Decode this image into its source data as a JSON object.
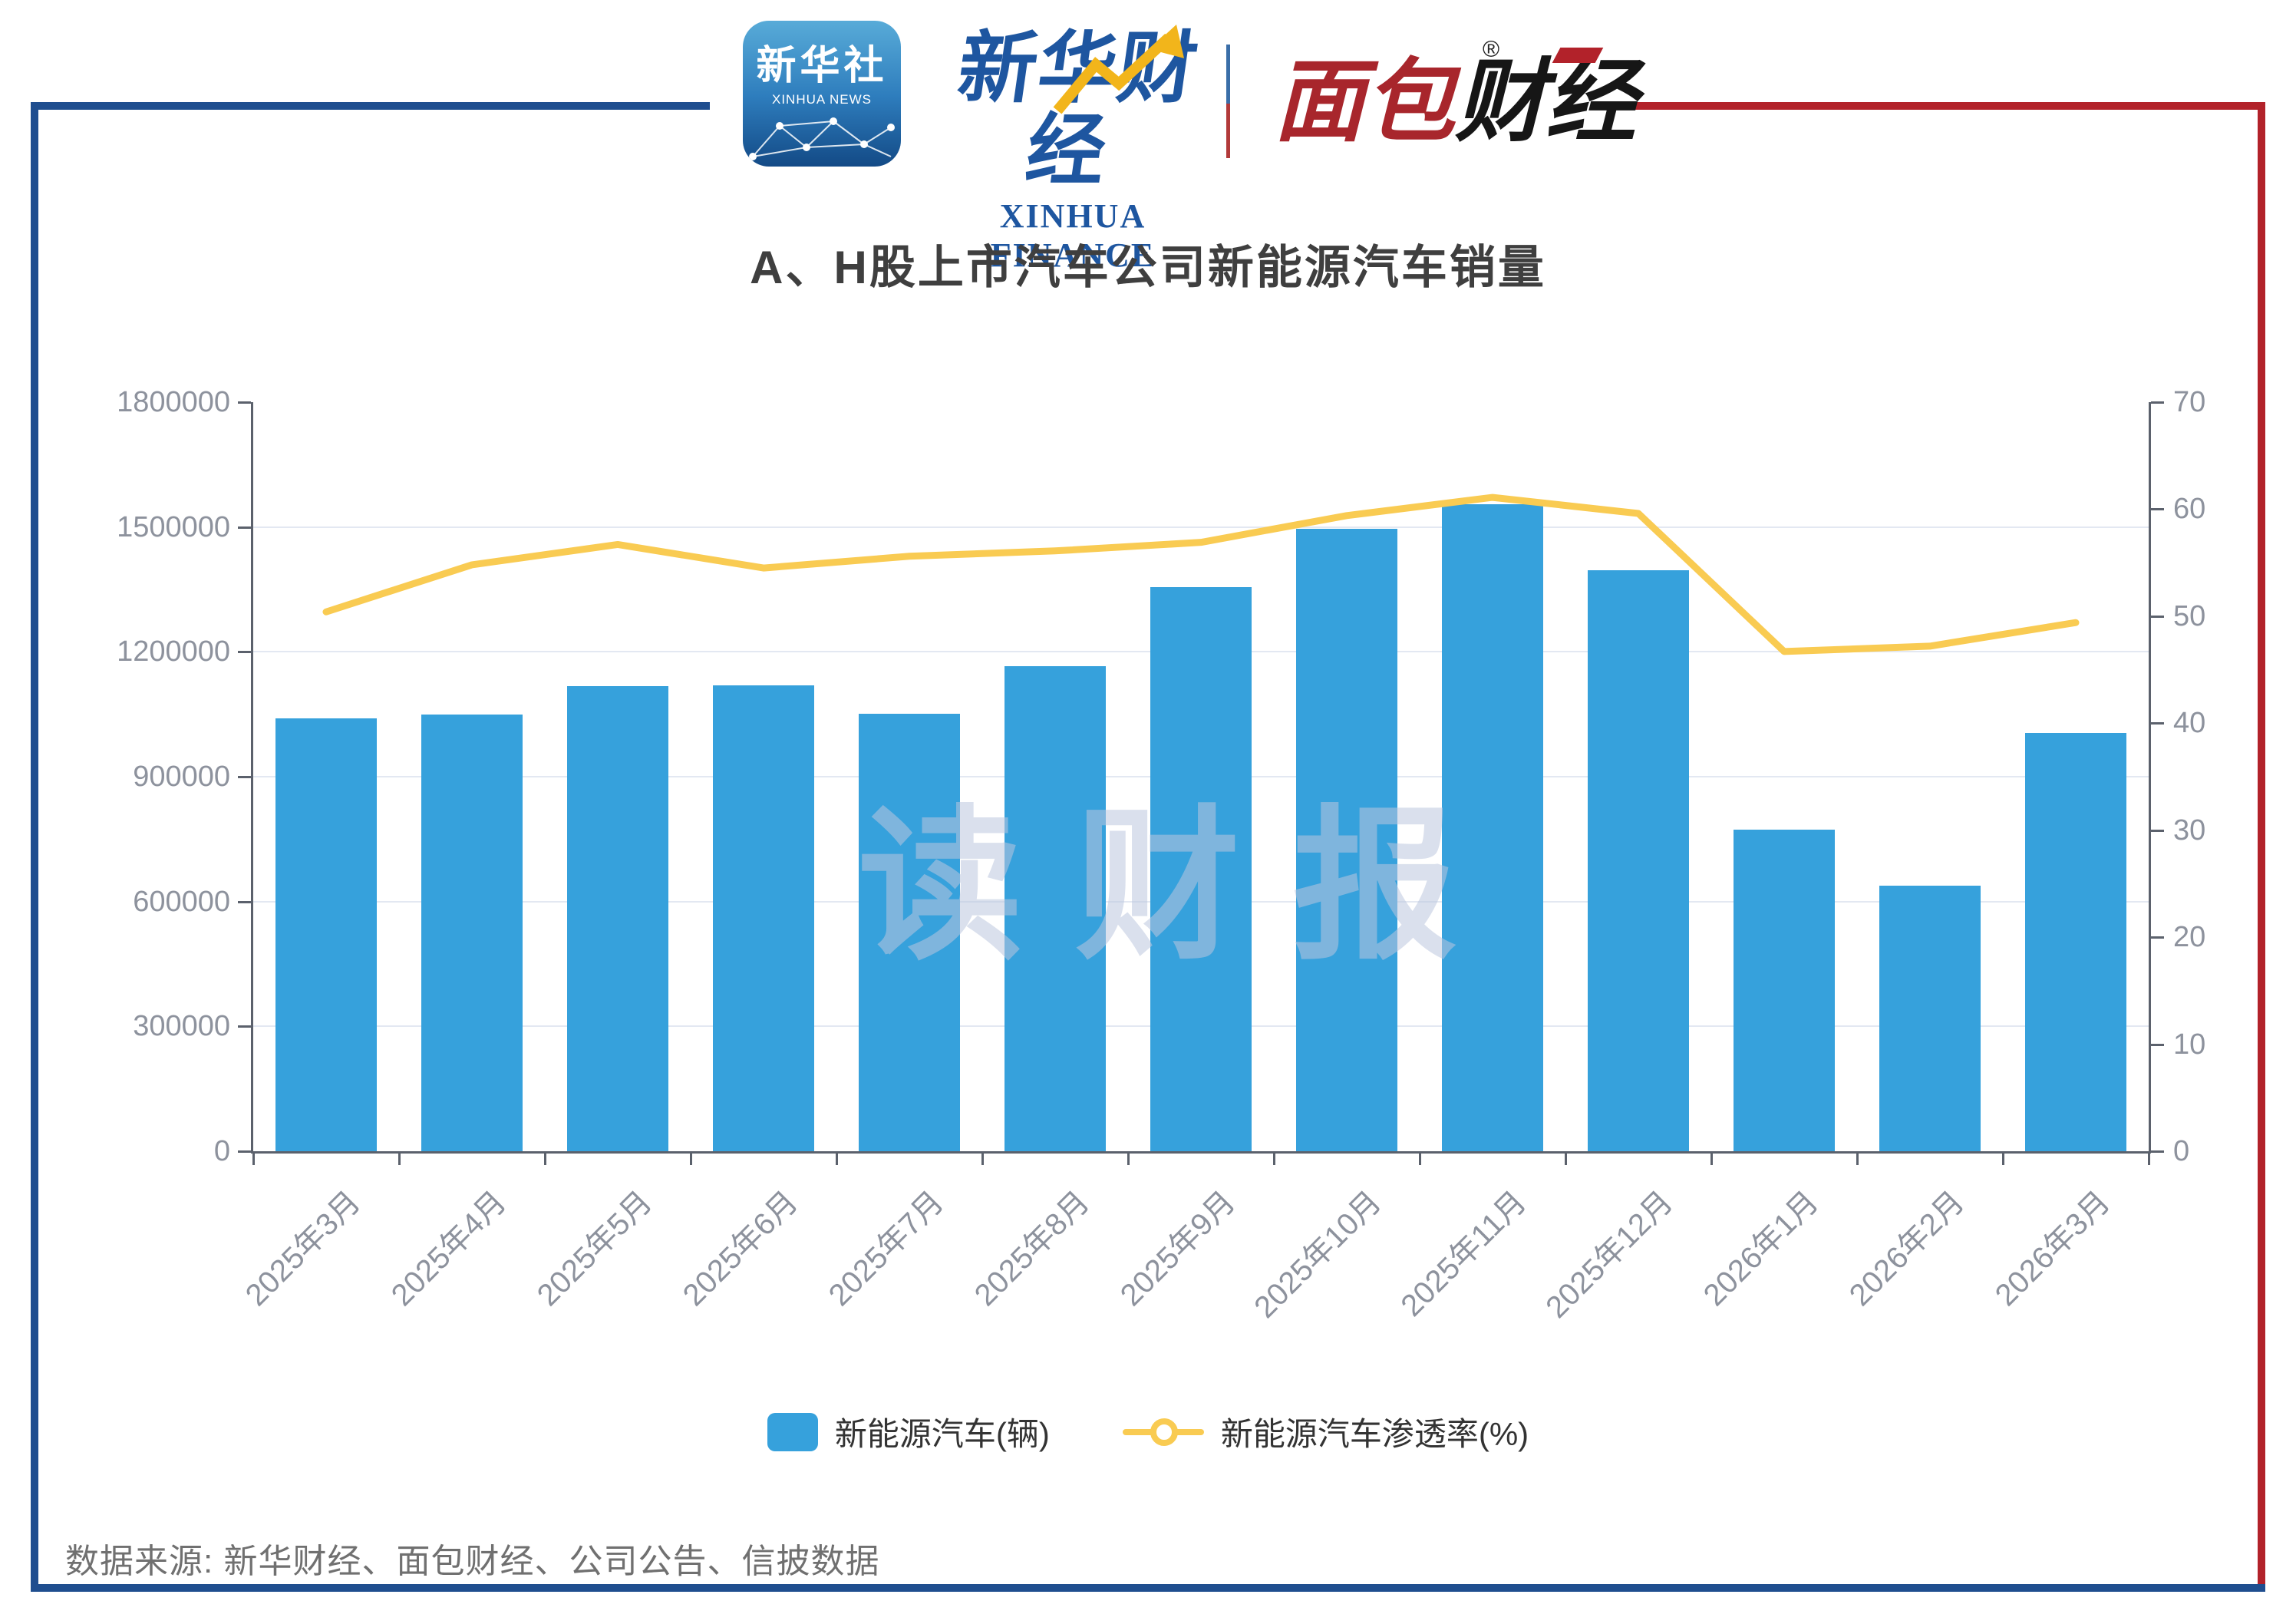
{
  "header": {
    "xinhua_news": {
      "line1": "新华社",
      "line2": "XINHUA NEWS"
    },
    "xinhua_finance": {
      "cn": "新华财经",
      "en": "XINHUA FINANCE"
    },
    "mianbao": {
      "cn_red": "面包",
      "cn_black": "财经",
      "reg_mark": "®"
    }
  },
  "title": "A、H股上市汽车公司新能源汽车销量",
  "watermark": "读财报",
  "source_note": "数据来源: 新华财经、面包财经、公司公告、信披数据",
  "legend": [
    {
      "label": "新能源汽车(辆)",
      "type": "bar"
    },
    {
      "label": "新能源汽车渗透率(%)",
      "type": "line"
    }
  ],
  "colors": {
    "bar": "#36a1dc",
    "line": "#f9cb52",
    "grid": "#e3e8f2",
    "axis": "#5b616c",
    "axis_label": "#8d929d",
    "frame_blue": "#1f4e8f",
    "frame_red": "#b2222a",
    "title": "#3f3f3f"
  },
  "chart_data": {
    "type": "bar",
    "subtype": "dual-axis bar + line",
    "title": "A、H股上市汽车公司新能源汽车销量",
    "categories": [
      "2025年3月",
      "2025年4月",
      "2025年5月",
      "2025年6月",
      "2025年7月",
      "2025年8月",
      "2025年9月",
      "2025年10月",
      "2025年11月",
      "2025年12月",
      "2026年1月",
      "2026年2月",
      "2026年3月"
    ],
    "series": [
      {
        "name": "新能源汽车(辆)",
        "type": "bar",
        "axis": "left",
        "color": "#36a1dc",
        "values": [
          1041000,
          1050000,
          1118000,
          1120000,
          1052000,
          1165000,
          1356000,
          1496000,
          1555000,
          1396000,
          772000,
          638000,
          1005000
        ]
      },
      {
        "name": "新能源汽车渗透率(%)",
        "type": "line",
        "axis": "right",
        "color": "#f9cb52",
        "values": [
          50.4,
          54.8,
          56.7,
          54.5,
          55.6,
          56.1,
          56.9,
          59.4,
          61.1,
          59.6,
          46.7,
          47.2,
          49.4
        ]
      }
    ],
    "left_axis": {
      "label": "",
      "min": 0,
      "max": 1800000,
      "step": 300000,
      "tick_labels": [
        "0",
        "300000",
        "600000",
        "900000",
        "1200000",
        "1500000",
        "1800000"
      ]
    },
    "right_axis": {
      "label": "",
      "min": 0,
      "max": 70,
      "step": 10,
      "tick_labels": [
        "0",
        "10",
        "20",
        "30",
        "40",
        "50",
        "60",
        "70"
      ]
    },
    "grid": true,
    "legend_position": "bottom",
    "xlabel": "",
    "ylabel": ""
  }
}
